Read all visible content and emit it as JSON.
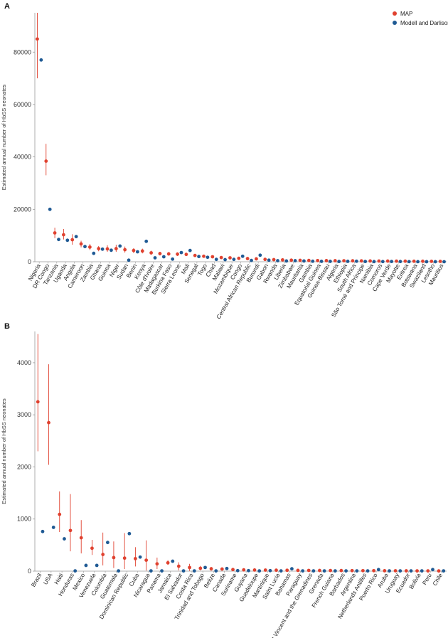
{
  "colors": {
    "map": "#e0412f",
    "modell": "#1f5a94",
    "errorbar": "#e0412f",
    "axis": "#999999"
  },
  "legend": {
    "map_label": "MAP",
    "modell_label": "Modell and Darlison",
    "placement": "top-right"
  },
  "chart_data": [
    {
      "type": "scatter",
      "panel": "A",
      "ylabel": "Estimated annual number of HbSS neonates",
      "ylim": [
        0,
        95000
      ],
      "yticks": [
        0,
        20000,
        40000,
        60000,
        80000
      ],
      "grid": false,
      "categories": [
        "Nigeria",
        "DR Congo",
        "Tanzania",
        "Uganda",
        "Angola",
        "Cameroon",
        "Zambia",
        "Ghana",
        "Guinea",
        "Niger",
        "Sudan",
        "Benin",
        "Kenya",
        "Côte d'Ivoire",
        "Madagascar",
        "Burkina Faso",
        "Sierra Leone",
        "Mali",
        "Senegal",
        "Togo",
        "Chad",
        "Malawi",
        "Mozambique",
        "Congo",
        "Central African Republic",
        "Burundi",
        "Gabon",
        "Rwanda",
        "Liberia",
        "Zimbabwe",
        "Mauritania",
        "Gambia",
        "Equatorial Guinea",
        "Guinea-Bissau",
        "Algeria",
        "Ethiopia",
        "South Africa",
        "São Tomé and Príncipe",
        "Namibia",
        "Comoros",
        "Cape Verde",
        "Mayotte",
        "Eritrea",
        "Botswana",
        "Swaziland",
        "Lesotho",
        "Mauritius"
      ],
      "series": [
        {
          "name": "MAP",
          "values": [
            85000,
            38400,
            11000,
            10300,
            8400,
            6800,
            5600,
            5000,
            4900,
            5000,
            4600,
            4300,
            4100,
            3400,
            3100,
            3000,
            2900,
            2800,
            2400,
            2100,
            1900,
            1600,
            1500,
            1300,
            1200,
            1100,
            900,
            800,
            700,
            600,
            550,
            500,
            450,
            420,
            400,
            380,
            350,
            320,
            300,
            280,
            260,
            240,
            220,
            200,
            180,
            160,
            140
          ],
          "err_low": [
            70000,
            33000,
            9000,
            8500,
            6500,
            5500,
            4500,
            4000,
            3800,
            3800,
            3500,
            3300,
            3200,
            2700,
            2400,
            2300,
            2200,
            2200,
            1900,
            1600,
            1400,
            1200,
            1100,
            1000,
            900,
            800,
            650,
            600,
            500,
            450,
            400,
            350,
            330,
            300,
            280,
            260,
            240,
            220,
            200,
            180,
            170,
            160,
            150,
            140,
            120,
            110,
            100
          ],
          "err_high": [
            95000,
            45000,
            13000,
            12500,
            10500,
            8000,
            6800,
            6000,
            6300,
            6500,
            5800,
            5200,
            5000,
            4200,
            3800,
            3700,
            3600,
            3400,
            2900,
            2600,
            2400,
            2000,
            1900,
            1600,
            1500,
            1400,
            1150,
            1000,
            900,
            750,
            700,
            650,
            580,
            550,
            520,
            500,
            460,
            430,
            400,
            370,
            340,
            320,
            300,
            270,
            240,
            220,
            190
          ]
        },
        {
          "name": "Modell and Darlison",
          "values": [
            77000,
            20000,
            8500,
            8200,
            9600,
            5800,
            3200,
            4800,
            4400,
            6000,
            600,
            3800,
            7800,
            1500,
            1900,
            1000,
            3500,
            4300,
            2000,
            1700,
            900,
            800,
            900,
            2100,
            500,
            2500,
            600,
            400,
            300,
            400,
            300,
            200,
            150,
            150,
            100,
            150,
            200,
            100,
            50,
            60,
            100,
            80,
            40,
            30,
            20,
            20,
            10
          ]
        }
      ]
    },
    {
      "type": "scatter",
      "panel": "B",
      "ylabel": "Estimated annual number of HbSS neonates",
      "ylim": [
        0,
        4600
      ],
      "yticks": [
        0,
        1000,
        2000,
        3000,
        4000
      ],
      "grid": false,
      "categories": [
        "Brazil",
        "USA",
        "Haiti",
        "Honduras",
        "Mexico",
        "Venezuela",
        "Colombia",
        "Guatemala",
        "Dominican Republic",
        "Cuba",
        "Nicaragua",
        "Panama",
        "Jamaica",
        "El Salvador",
        "Costa Rica",
        "Trinidad and Tobago",
        "Belize",
        "Canada",
        "Suriname",
        "Guyana",
        "Guadeloupe",
        "Martinique",
        "Saint Lucia",
        "Bahamas",
        "Paraguay",
        "Saint Vincent and the Grenadines",
        "Grenada",
        "French Guiana",
        "Barbados",
        "Argentina",
        "Netherlands Antilles",
        "Puerto Rico",
        "Aruba",
        "Uruguay",
        "Ecuador",
        "Bolivia",
        "Peru",
        "Chile"
      ],
      "series": [
        {
          "name": "MAP",
          "values": [
            3250,
            2850,
            1090,
            780,
            640,
            440,
            320,
            260,
            250,
            240,
            210,
            140,
            160,
            95,
            70,
            55,
            45,
            40,
            30,
            25,
            22,
            20,
            18,
            17,
            15,
            14,
            13,
            12,
            11,
            10,
            9,
            9,
            8,
            7,
            6,
            5,
            5,
            4
          ],
          "err_low": [
            2300,
            2040,
            750,
            380,
            340,
            310,
            110,
            60,
            40,
            90,
            10,
            40,
            120,
            15,
            5,
            15,
            10,
            20,
            10,
            5,
            5,
            5,
            5,
            5,
            4,
            4,
            3,
            3,
            3,
            3,
            2,
            2,
            2,
            2,
            1,
            1,
            1,
            1
          ],
          "err_high": [
            4550,
            3970,
            1530,
            1480,
            980,
            600,
            740,
            570,
            730,
            460,
            590,
            260,
            210,
            170,
            140,
            100,
            80,
            65,
            55,
            45,
            40,
            35,
            30,
            30,
            28,
            26,
            24,
            22,
            20,
            18,
            16,
            16,
            15,
            13,
            11,
            10,
            9,
            8
          ]
        },
        {
          "name": "Modell and Darlison",
          "values": [
            760,
            840,
            620,
            5,
            110,
            110,
            550,
            5,
            720,
            270,
            5,
            5,
            190,
            5,
            5,
            70,
            5,
            50,
            10,
            10,
            5,
            10,
            5,
            45,
            5,
            5,
            5,
            5,
            5,
            5,
            5,
            30,
            5,
            5,
            5,
            5,
            30,
            5
          ]
        }
      ]
    }
  ]
}
